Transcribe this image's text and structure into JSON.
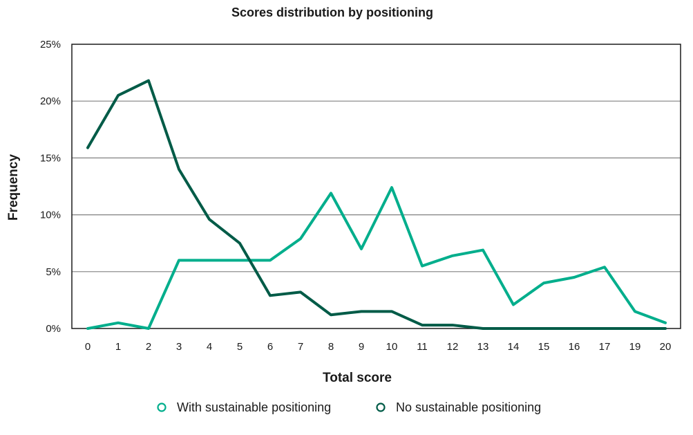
{
  "chart_data": {
    "type": "line",
    "title": "Scores distribution by positioning",
    "xlabel": "Total score",
    "ylabel": "Frequency",
    "categories": [
      "0",
      "1",
      "2",
      "3",
      "4",
      "5",
      "6",
      "7",
      "8",
      "9",
      "10",
      "11",
      "12",
      "13",
      "14",
      "15",
      "16",
      "17",
      "19",
      "20"
    ],
    "ylim": [
      0,
      25
    ],
    "yticks": [
      0,
      5,
      10,
      15,
      20,
      25
    ],
    "ytick_labels": [
      "0%",
      "5%",
      "10%",
      "15%",
      "20%",
      "25%"
    ],
    "grid": "horizontal",
    "legend_position": "bottom",
    "series": [
      {
        "name": "With sustainable positioning",
        "color": "#00ae8c",
        "values": [
          0,
          0.5,
          0,
          6,
          6,
          6,
          6,
          7.9,
          11.9,
          7,
          12.4,
          5.5,
          6.4,
          6.9,
          2.1,
          4,
          4.5,
          5.4,
          1.5,
          0.5
        ]
      },
      {
        "name": "No sustainable positioning",
        "color": "#005b47",
        "values": [
          15.9,
          20.5,
          21.8,
          14,
          9.6,
          7.5,
          2.9,
          3.2,
          1.2,
          1.5,
          1.5,
          0.3,
          0.3,
          0,
          0,
          0,
          0,
          0,
          0,
          0
        ]
      }
    ]
  }
}
